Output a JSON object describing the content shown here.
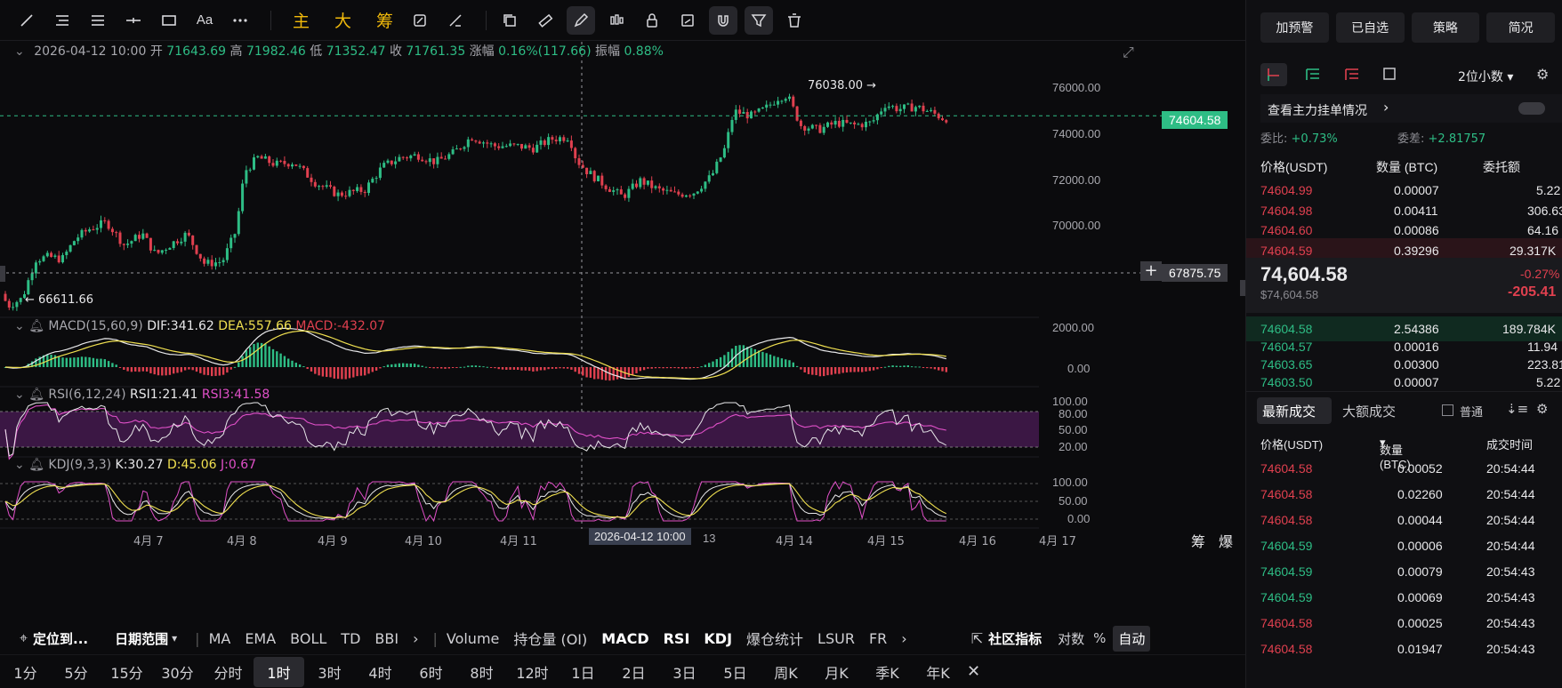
{
  "toolbar": {
    "aa_label": "Aa",
    "main_label": "主",
    "big_label": "大",
    "chip_label": "筹"
  },
  "ohlc": {
    "datetime": "2026-04-12 10:00",
    "open_label": "开",
    "open": "71643.69",
    "high_label": "高",
    "high": "71982.46",
    "low_label": "低",
    "low": "71352.47",
    "close_label": "收",
    "close": "71761.35",
    "change_label": "涨幅",
    "change": "0.16%(117.66)",
    "amp_label": "振幅",
    "amp": "0.88%"
  },
  "price_axis": [
    "76000.00",
    "74000.00",
    "72000.00",
    "70000.00"
  ],
  "markers": {
    "high_marker": "76038.00",
    "low_marker": "66611.66",
    "current_price": "74604.58",
    "crosshair_price": "67875.75"
  },
  "macd": {
    "name": "MACD(15,60,9)",
    "dif": "DIF:341.62",
    "dea": "DEA:557.66",
    "macd": "MACD:-432.07",
    "axis": [
      "2000.00",
      "0.00"
    ]
  },
  "rsi": {
    "name": "RSI(6,12,24)",
    "rsi1": "RSI1:21.41",
    "rsi3": "RSI3:41.58",
    "axis": [
      "100.00",
      "80.00",
      "50.00",
      "20.00"
    ]
  },
  "kdj": {
    "name": "KDJ(9,3,3)",
    "k": "K:30.27",
    "d": "D:45.06",
    "j": "J:0.67",
    "axis": [
      "100.00",
      "50.00",
      "0.00"
    ]
  },
  "x_axis": [
    "4月 7",
    "4月 8",
    "4月 9",
    "4月 10",
    "4月 11",
    "13",
    "4月 14",
    "4月 15",
    "4月 16",
    "4月 17"
  ],
  "x_crosshair": "2026-04-12 10:00",
  "x_corner": [
    "筹",
    "爆"
  ],
  "bottom_bar1": {
    "locate": "定位到...",
    "date_range": "日期范围",
    "indicators_main": [
      "MA",
      "EMA",
      "BOLL",
      "TD",
      "BBI"
    ],
    "indicators_sub": [
      "Volume",
      "持仓量 (OI)",
      "MACD",
      "RSI",
      "KDJ",
      "爆仓统计",
      "LSUR",
      "FR"
    ],
    "community": "社区指标",
    "log": "对数",
    "percent": "%",
    "auto": "自动"
  },
  "timeframes": [
    "1分",
    "5分",
    "15分",
    "30分",
    "分时",
    "1时",
    "3时",
    "4时",
    "6时",
    "8时",
    "12时",
    "1日",
    "2日",
    "3日",
    "5日",
    "周K",
    "月K",
    "季K",
    "年K"
  ],
  "active_timeframe": "1时",
  "panel": {
    "buttons": [
      "加预警",
      "已自选",
      "策略",
      "简况"
    ],
    "decimals": "2位小数",
    "big_orders": "查看主力挂单情况",
    "ratio_label": "委比:",
    "ratio": "+0.73%",
    "diff_label": "委差:",
    "diff": "+2.81757",
    "headers": [
      "价格(USDT)",
      "数量 (BTC)",
      "委托额"
    ],
    "asks": [
      {
        "price": "74604.99",
        "qty": "0.00007",
        "amt": "5.22"
      },
      {
        "price": "74604.98",
        "qty": "0.00411",
        "amt": "306.63"
      },
      {
        "price": "74604.60",
        "qty": "0.00086",
        "amt": "64.16"
      },
      {
        "price": "74604.59",
        "qty": "0.39296",
        "amt": "29.317K"
      }
    ],
    "last_price": "74,604.58",
    "last_usd": "$74,604.58",
    "pct_change": "-0.27%",
    "abs_change": "-205.41",
    "bids": [
      {
        "price": "74604.58",
        "qty": "2.54386",
        "amt": "189.784K"
      },
      {
        "price": "74604.57",
        "qty": "0.00016",
        "amt": "11.94"
      },
      {
        "price": "74603.65",
        "qty": "0.00300",
        "amt": "223.81"
      },
      {
        "price": "74603.50",
        "qty": "0.00007",
        "amt": "5.22"
      }
    ],
    "trade_tabs": [
      "最新成交",
      "大额成交"
    ],
    "normal_label": "普通",
    "trade_headers": [
      "价格(USDT)",
      "数量(BTC)",
      "成交时间"
    ],
    "trades": [
      {
        "price": "74604.58",
        "qty": "0.00052",
        "time": "20:54:44",
        "side": "sell"
      },
      {
        "price": "74604.58",
        "qty": "0.02260",
        "time": "20:54:44",
        "side": "sell"
      },
      {
        "price": "74604.58",
        "qty": "0.00044",
        "time": "20:54:44",
        "side": "sell"
      },
      {
        "price": "74604.59",
        "qty": "0.00006",
        "time": "20:54:44",
        "side": "buy"
      },
      {
        "price": "74604.59",
        "qty": "0.00079",
        "time": "20:54:43",
        "side": "buy"
      },
      {
        "price": "74604.59",
        "qty": "0.00069",
        "time": "20:54:43",
        "side": "buy"
      },
      {
        "price": "74604.58",
        "qty": "0.00025",
        "time": "20:54:43",
        "side": "sell"
      },
      {
        "price": "74604.58",
        "qty": "0.01947",
        "time": "20:54:43",
        "side": "sell"
      }
    ]
  },
  "colors": {
    "up": "#2ebd85",
    "down": "#e0404f",
    "accent": "#f0b90b",
    "dea": "#f0e050",
    "macd_text": "#e0404f",
    "rsi3": "#e050c8",
    "rsi_band": "#3b1744"
  }
}
